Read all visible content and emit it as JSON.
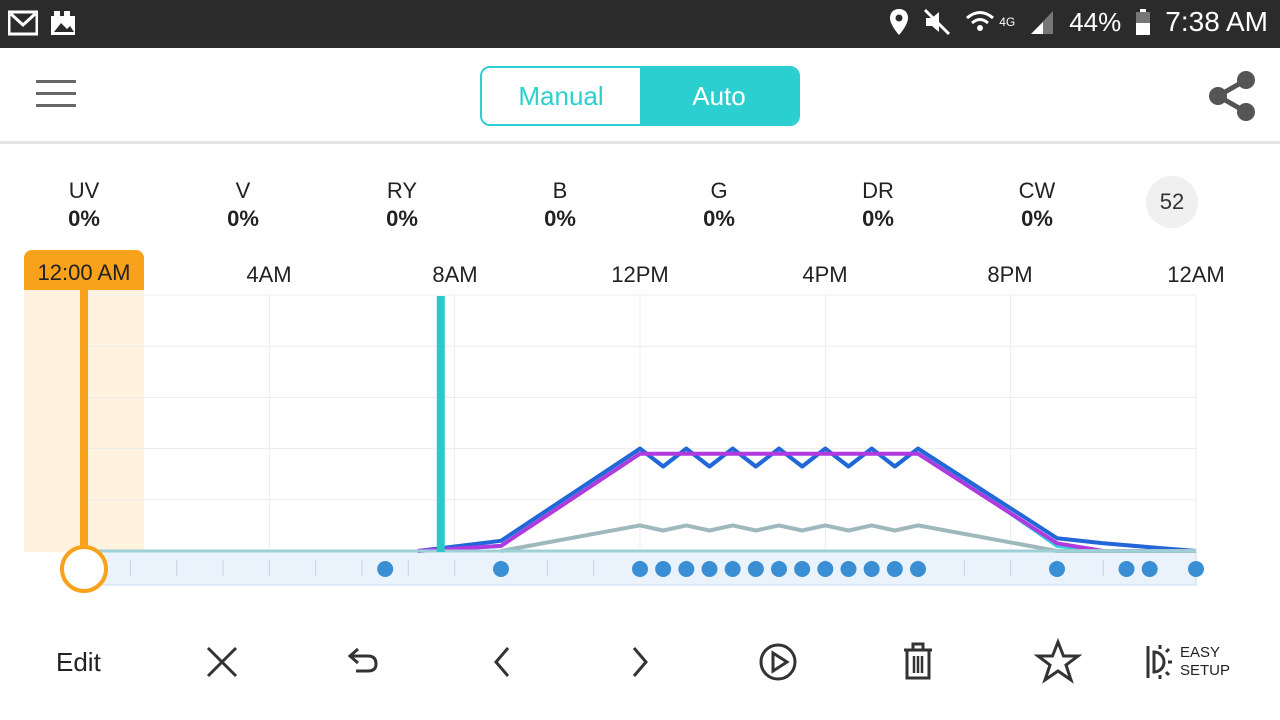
{
  "status_bar": {
    "battery": "44%",
    "time": "7:38 AM",
    "network": "4G",
    "left_icons": [
      "gmail-icon",
      "photos-icon"
    ],
    "right_icons": [
      "location-icon",
      "mute-icon",
      "wifi-icon",
      "signal-icon",
      "battery-icon"
    ]
  },
  "header": {
    "mode_manual": "Manual",
    "mode_auto": "Auto",
    "active_mode": "Auto"
  },
  "channels": [
    {
      "name": "UV",
      "value": "0%"
    },
    {
      "name": "V",
      "value": "0%"
    },
    {
      "name": "RY",
      "value": "0%"
    },
    {
      "name": "B",
      "value": "0%"
    },
    {
      "name": "G",
      "value": "0%"
    },
    {
      "name": "DR",
      "value": "0%"
    },
    {
      "name": "CW",
      "value": "0%"
    }
  ],
  "badge": "52",
  "timeline": {
    "current_time": "12:00 AM",
    "ticks": [
      "4AM",
      "8AM",
      "12PM",
      "4PM",
      "8PM",
      "12AM"
    ]
  },
  "chart_data": {
    "type": "line",
    "x_unit": "hours",
    "xlim": [
      0,
      24
    ],
    "ylim": [
      0,
      100
    ],
    "now_marker": 0,
    "cursor_marker": 7.7,
    "series": [
      {
        "color": "#2fd3dd",
        "x": [
          7.2,
          9.0,
          12.0,
          12.5,
          13.0,
          13.5,
          14.0,
          14.5,
          15.0,
          15.5,
          16.0,
          16.5,
          17.0,
          17.5,
          18.0,
          21.0,
          22.0,
          24.0
        ],
        "values": [
          0,
          2,
          40,
          33,
          40,
          33,
          40,
          33,
          40,
          33,
          40,
          33,
          40,
          33,
          40,
          2,
          0,
          0
        ]
      },
      {
        "color": "#2266d8",
        "x": [
          7.2,
          9.0,
          12.0,
          12.5,
          13.0,
          13.5,
          14.0,
          14.5,
          15.0,
          15.5,
          16.0,
          16.5,
          17.0,
          17.5,
          18.0,
          21.0,
          22.0,
          24.0
        ],
        "values": [
          0,
          4,
          40,
          33,
          40,
          33,
          40,
          33,
          40,
          33,
          40,
          33,
          40,
          33,
          40,
          5,
          3,
          0
        ]
      },
      {
        "color": "#b03adf",
        "x": [
          7.2,
          9.0,
          12.0,
          18.0,
          21.0,
          22.0,
          24.0
        ],
        "values": [
          0,
          2,
          38,
          38,
          3,
          0,
          0
        ]
      },
      {
        "color": "#9fb8bd",
        "x": [
          9.0,
          12.0,
          12.5,
          13.0,
          13.5,
          14.0,
          14.5,
          15.0,
          15.5,
          16.0,
          16.5,
          17.0,
          17.5,
          18.0,
          21.0,
          24.0
        ],
        "values": [
          0,
          10,
          8,
          10,
          8,
          10,
          8,
          10,
          8,
          10,
          8,
          10,
          8,
          10,
          0,
          0
        ]
      }
    ],
    "points": [
      6.5,
      9.0,
      12.0,
      12.5,
      13.0,
      13.5,
      14.0,
      14.5,
      15.0,
      15.5,
      16.0,
      16.5,
      17.0,
      17.5,
      18.0,
      21.0,
      22.5,
      23.0,
      24.0
    ]
  },
  "toolbar": {
    "edit": "Edit",
    "easy_setup_1": "EASY",
    "easy_setup_2": "SETUP",
    "icons": [
      "close-icon",
      "undo-icon",
      "prev-icon",
      "next-icon",
      "play-icon",
      "trash-icon",
      "star-icon",
      "brightness-icon"
    ]
  }
}
